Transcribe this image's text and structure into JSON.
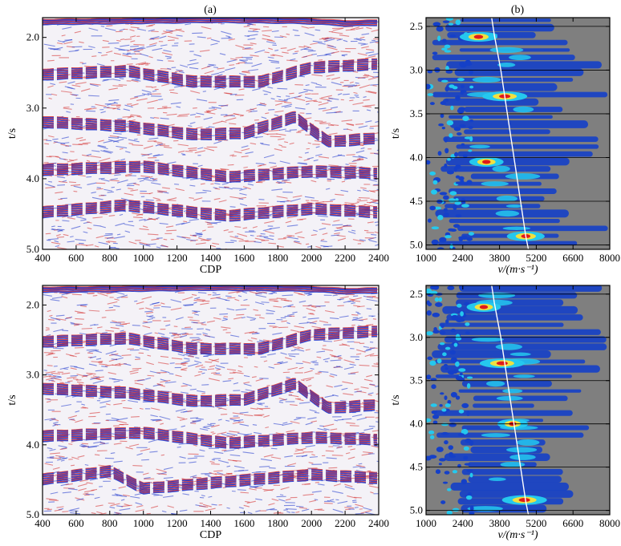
{
  "panel_labels": {
    "a": "(a)",
    "b": "(b)"
  },
  "colors": {
    "wiggle_red": "#d42a2a",
    "wiggle_blue": "#1a33cc",
    "spectrum_background": "#7f7f7f",
    "spectrum_low": "#1540c8",
    "spectrum_mid": "#25c8ee",
    "spectrum_high": "#e01a1a",
    "pick_line": "#ffffff",
    "grid": "#000000"
  },
  "chart_data": [
    {
      "id": "section-top",
      "type": "heatmap",
      "subtype": "seismic-section",
      "xlabel": "CDP",
      "ylabel": "t/s",
      "xlim": [
        400,
        2400
      ],
      "ylim": [
        1.72,
        5.0
      ],
      "y_inverted": true,
      "xticks": [
        400,
        600,
        800,
        1000,
        1200,
        1400,
        1600,
        1800,
        2000,
        2200,
        2400
      ],
      "yticks": [
        2.0,
        3.0,
        4.0,
        5.0
      ],
      "ytick_labels": [
        "2.0",
        "3.0",
        "4.0",
        "5.0"
      ],
      "reflectors": [
        {
          "x": [
            400,
            800,
            1400,
            1800,
            2000,
            2200,
            2400
          ],
          "t": [
            1.75,
            1.74,
            1.72,
            1.73,
            1.74,
            1.77,
            1.76
          ]
        },
        {
          "x": [
            400,
            900,
            1300,
            1700,
            2000,
            2400
          ],
          "t": [
            2.45,
            2.4,
            2.55,
            2.55,
            2.35,
            2.3
          ]
        },
        {
          "x": [
            400,
            900,
            1300,
            1600,
            1900,
            2100,
            2400
          ],
          "t": [
            3.12,
            3.18,
            3.3,
            3.28,
            3.05,
            3.4,
            3.35
          ]
        },
        {
          "x": [
            400,
            1000,
            1500,
            2000,
            2400
          ],
          "t": [
            3.8,
            3.75,
            3.9,
            3.82,
            3.85
          ]
        },
        {
          "x": [
            400,
            900,
            1500,
            2000,
            2400
          ],
          "t": [
            4.4,
            4.3,
            4.45,
            4.35,
            4.4
          ]
        }
      ]
    },
    {
      "id": "spectrum-top",
      "type": "heatmap",
      "subtype": "velocity-spectrum",
      "xlabel": "v/(m·s⁻¹)",
      "ylabel": "t/s",
      "xlim": [
        1000,
        8000
      ],
      "ylim": [
        2.4,
        5.05
      ],
      "y_inverted": true,
      "xticks": [
        1000,
        2400,
        3800,
        5200,
        6600,
        8000
      ],
      "yticks": [
        2.5,
        3.0,
        3.5,
        4.0,
        4.5,
        5.0
      ],
      "ytick_labels": [
        "2.5",
        "3.0",
        "3.5",
        "4.0",
        "4.5",
        "5.0"
      ],
      "velocity_pick": {
        "t": [
          2.4,
          2.6,
          3.0,
          3.3,
          3.6,
          4.0,
          4.5,
          4.9,
          5.05
        ],
        "v": [
          3500,
          3600,
          3850,
          4000,
          4150,
          4350,
          4600,
          4800,
          4900
        ]
      },
      "energy_peaks": [
        {
          "t": 2.62,
          "v": 3000,
          "level": 0.8
        },
        {
          "t": 3.3,
          "v": 4000,
          "level": 1.0
        },
        {
          "t": 4.05,
          "v": 3300,
          "level": 0.7
        },
        {
          "t": 4.9,
          "v": 4800,
          "level": 0.8
        }
      ]
    },
    {
      "id": "section-bottom",
      "type": "heatmap",
      "subtype": "seismic-section",
      "xlabel": "CDP",
      "ylabel": "t/s",
      "xlim": [
        400,
        2400
      ],
      "ylim": [
        1.72,
        5.0
      ],
      "y_inverted": true,
      "xticks": [
        400,
        600,
        800,
        1000,
        1200,
        1400,
        1600,
        1800,
        2000,
        2200,
        2400
      ],
      "yticks": [
        2.0,
        3.0,
        4.0,
        5.0
      ],
      "ytick_labels": [
        "2.0",
        "3.0",
        "4.0",
        "5.0"
      ],
      "reflectors": [
        {
          "x": [
            400,
            800,
            1400,
            1800,
            2000,
            2200,
            2400
          ],
          "t": [
            1.75,
            1.74,
            1.72,
            1.73,
            1.74,
            1.77,
            1.76
          ]
        },
        {
          "x": [
            400,
            900,
            1300,
            1700,
            2000,
            2400
          ],
          "t": [
            2.45,
            2.4,
            2.55,
            2.55,
            2.35,
            2.3
          ]
        },
        {
          "x": [
            400,
            900,
            1300,
            1600,
            1900,
            2100,
            2400
          ],
          "t": [
            3.12,
            3.18,
            3.3,
            3.28,
            3.05,
            3.4,
            3.35
          ]
        },
        {
          "x": [
            400,
            1000,
            1500,
            2000,
            2400
          ],
          "t": [
            3.8,
            3.75,
            3.9,
            3.82,
            3.85
          ]
        },
        {
          "x": [
            400,
            800,
            1000,
            1500,
            2000,
            2400
          ],
          "t": [
            4.42,
            4.3,
            4.55,
            4.45,
            4.35,
            4.4
          ]
        }
      ]
    },
    {
      "id": "spectrum-bottom",
      "type": "heatmap",
      "subtype": "velocity-spectrum",
      "xlabel": "v/(m·s⁻¹)",
      "ylabel": "t/s",
      "xlim": [
        1000,
        8000
      ],
      "ylim": [
        2.4,
        5.05
      ],
      "y_inverted": true,
      "xticks": [
        1000,
        2400,
        3800,
        5200,
        6600,
        8000
      ],
      "yticks": [
        2.5,
        3.0,
        3.5,
        4.0,
        4.5,
        5.0
      ],
      "ytick_labels": [
        "2.5",
        "3.0",
        "3.5",
        "4.0",
        "4.5",
        "5.0"
      ],
      "velocity_pick": {
        "t": [
          2.4,
          2.6,
          3.0,
          3.3,
          3.6,
          4.0,
          4.5,
          4.9,
          5.05
        ],
        "v": [
          3500,
          3600,
          3850,
          4000,
          4150,
          4350,
          4600,
          4800,
          4900
        ]
      },
      "energy_peaks": [
        {
          "t": 2.65,
          "v": 3200,
          "level": 0.7
        },
        {
          "t": 3.3,
          "v": 3900,
          "level": 1.0
        },
        {
          "t": 4.0,
          "v": 4300,
          "level": 0.6
        },
        {
          "t": 4.88,
          "v": 4750,
          "level": 1.0
        }
      ]
    }
  ]
}
